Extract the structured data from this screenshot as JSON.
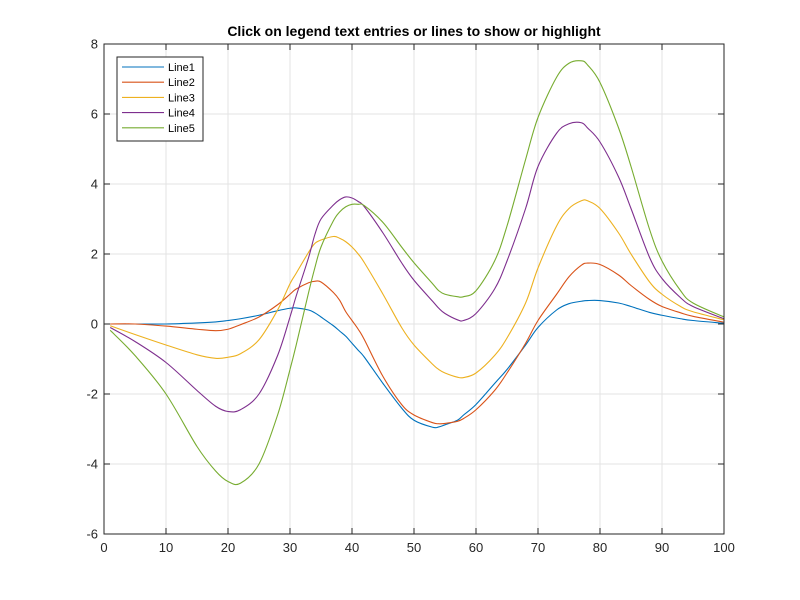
{
  "chart_data": {
    "type": "line",
    "title": "Click on legend text entries or lines to show or highlight",
    "xlabel": "",
    "ylabel": "",
    "xlim": [
      0,
      100
    ],
    "ylim": [
      -6,
      8
    ],
    "xticks": [
      0,
      10,
      20,
      30,
      40,
      50,
      60,
      70,
      80,
      90,
      100
    ],
    "yticks": [
      -6,
      -4,
      -2,
      0,
      2,
      4,
      6,
      8
    ],
    "grid": true,
    "legend_position": "top-left",
    "x": [
      1,
      5,
      10,
      15,
      18,
      20,
      22,
      25,
      28,
      30,
      31,
      33,
      34,
      35,
      37,
      38,
      39,
      40,
      41,
      42,
      45,
      48,
      50,
      53,
      54,
      55,
      57,
      58,
      60,
      63,
      65,
      68,
      70,
      73,
      75,
      77,
      78,
      80,
      83,
      85,
      88,
      90,
      93,
      95,
      100
    ],
    "series": [
      {
        "name": "Line1",
        "color": "#0072BD",
        "values": [
          0.0,
          0.0,
          0.0,
          0.03,
          0.06,
          0.1,
          0.15,
          0.25,
          0.38,
          0.45,
          0.46,
          0.4,
          0.32,
          0.2,
          -0.05,
          -0.2,
          -0.35,
          -0.55,
          -0.75,
          -0.95,
          -1.7,
          -2.4,
          -2.75,
          -2.95,
          -2.94,
          -2.88,
          -2.75,
          -2.6,
          -2.3,
          -1.7,
          -1.3,
          -0.6,
          -0.1,
          0.4,
          0.58,
          0.65,
          0.67,
          0.67,
          0.6,
          0.5,
          0.33,
          0.25,
          0.15,
          0.1,
          0.02
        ]
      },
      {
        "name": "Line2",
        "color": "#D95319",
        "values": [
          0.0,
          0.0,
          -0.06,
          -0.15,
          -0.19,
          -0.15,
          -0.02,
          0.2,
          0.55,
          0.85,
          1.0,
          1.18,
          1.22,
          1.2,
          0.9,
          0.68,
          0.35,
          0.1,
          -0.15,
          -0.45,
          -1.5,
          -2.3,
          -2.6,
          -2.82,
          -2.85,
          -2.84,
          -2.78,
          -2.7,
          -2.45,
          -1.9,
          -1.4,
          -0.55,
          0.1,
          0.85,
          1.35,
          1.68,
          1.74,
          1.7,
          1.4,
          1.1,
          0.7,
          0.5,
          0.32,
          0.22,
          0.05
        ]
      },
      {
        "name": "Line3",
        "color": "#EDB120",
        "values": [
          -0.05,
          -0.3,
          -0.6,
          -0.88,
          -0.98,
          -0.95,
          -0.85,
          -0.45,
          0.4,
          1.15,
          1.45,
          2.05,
          2.3,
          2.4,
          2.5,
          2.45,
          2.35,
          2.2,
          2.0,
          1.75,
          0.85,
          -0.1,
          -0.6,
          -1.15,
          -1.3,
          -1.4,
          -1.52,
          -1.53,
          -1.4,
          -0.9,
          -0.4,
          0.6,
          1.6,
          2.8,
          3.3,
          3.52,
          3.52,
          3.3,
          2.6,
          2.0,
          1.2,
          0.85,
          0.5,
          0.35,
          0.12
        ]
      },
      {
        "name": "Line4",
        "color": "#7E2F8E",
        "values": [
          -0.1,
          -0.5,
          -1.1,
          -1.9,
          -2.35,
          -2.5,
          -2.45,
          -2.0,
          -0.9,
          0.2,
          0.8,
          1.9,
          2.55,
          3.0,
          3.4,
          3.55,
          3.63,
          3.6,
          3.5,
          3.35,
          2.6,
          1.75,
          1.25,
          0.65,
          0.45,
          0.3,
          0.12,
          0.1,
          0.3,
          1.0,
          1.8,
          3.3,
          4.5,
          5.45,
          5.72,
          5.75,
          5.6,
          5.2,
          4.2,
          3.3,
          1.9,
          1.3,
          0.75,
          0.5,
          0.15
        ]
      },
      {
        "name": "Line5",
        "color": "#77AC30",
        "values": [
          -0.18,
          -0.9,
          -2.0,
          -3.5,
          -4.2,
          -4.5,
          -4.55,
          -4.0,
          -2.6,
          -1.3,
          -0.6,
          0.9,
          1.6,
          2.2,
          2.95,
          3.2,
          3.35,
          3.42,
          3.42,
          3.38,
          2.9,
          2.2,
          1.75,
          1.15,
          0.95,
          0.85,
          0.78,
          0.78,
          0.95,
          1.8,
          2.8,
          4.7,
          5.9,
          7.05,
          7.45,
          7.52,
          7.4,
          6.9,
          5.6,
          4.5,
          2.7,
          1.8,
          0.95,
          0.6,
          0.2
        ]
      }
    ]
  }
}
